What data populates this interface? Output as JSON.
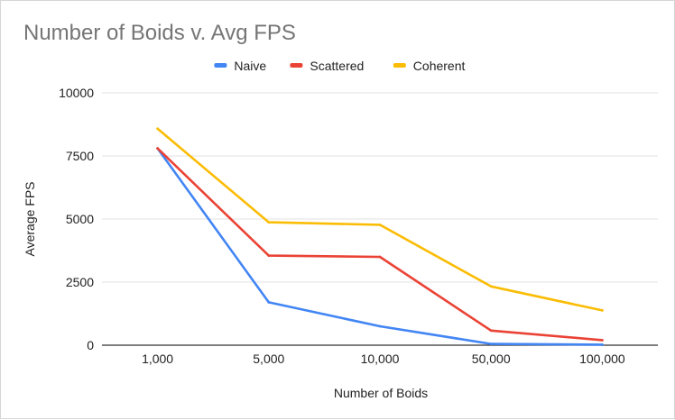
{
  "chart_data": {
    "type": "line",
    "title": "Number of Boids v. Avg FPS",
    "xlabel": "Number of Boids",
    "ylabel": "Average FPS",
    "categories": [
      "1,000",
      "5,000",
      "10,000",
      "50,000",
      "100,000"
    ],
    "yticks": [
      "0",
      "2500",
      "5000",
      "7500",
      "10000"
    ],
    "ylim": [
      0,
      10000
    ],
    "grid": true,
    "legend_position": "top",
    "series": [
      {
        "name": "Naive",
        "color": "#4285f4",
        "values": [
          7800,
          1700,
          750,
          50,
          20
        ]
      },
      {
        "name": "Scattered",
        "color": "#ea4335",
        "values": [
          7800,
          3550,
          3500,
          580,
          200
        ]
      },
      {
        "name": "Coherent",
        "color": "#fbbc04",
        "values": [
          8580,
          4870,
          4770,
          2330,
          1380
        ]
      }
    ]
  }
}
